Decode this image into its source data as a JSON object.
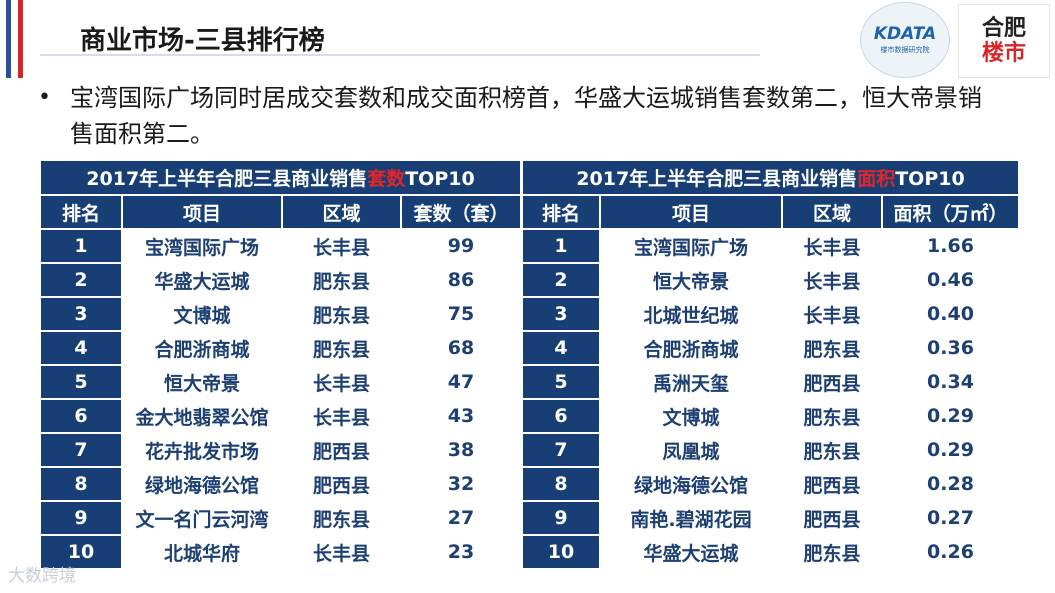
{
  "header": {
    "title": "商业市场-三县排行榜"
  },
  "logos": {
    "kdata_main": "KDATA",
    "kdata_sub": "楼市数据研究院",
    "loushi_top": "合肥",
    "loushi_bottom": "楼市"
  },
  "bullet": {
    "symbol": "•",
    "text": "宝湾国际广场同时居成交套数和成交面积榜首，华盛大运城销售套数第二，恒大帝景销售面积第二。"
  },
  "table_units": {
    "caption_prefix": "2017年上半年合肥三县商业销售",
    "caption_highlight": "套数",
    "caption_suffix": "TOP10",
    "headers": [
      "排名",
      "项目",
      "区域",
      "套数（套）"
    ],
    "rows": [
      {
        "rank": "1",
        "project": "宝湾国际广场",
        "region": "长丰县",
        "value": "99"
      },
      {
        "rank": "2",
        "project": "华盛大运城",
        "region": "肥东县",
        "value": "86"
      },
      {
        "rank": "3",
        "project": "文博城",
        "region": "肥东县",
        "value": "75"
      },
      {
        "rank": "4",
        "project": "合肥浙商城",
        "region": "肥东县",
        "value": "68"
      },
      {
        "rank": "5",
        "project": "恒大帝景",
        "region": "长丰县",
        "value": "47"
      },
      {
        "rank": "6",
        "project": "金大地翡翠公馆",
        "region": "长丰县",
        "value": "43"
      },
      {
        "rank": "7",
        "project": "花卉批发市场",
        "region": "肥西县",
        "value": "38"
      },
      {
        "rank": "8",
        "project": "绿地海德公馆",
        "region": "肥西县",
        "value": "32"
      },
      {
        "rank": "9",
        "project": "文一名门云河湾",
        "region": "肥东县",
        "value": "27"
      },
      {
        "rank": "10",
        "project": "北城华府",
        "region": "长丰县",
        "value": "23"
      }
    ]
  },
  "table_area": {
    "caption_prefix": "2017年上半年合肥三县商业销售",
    "caption_highlight": "面积",
    "caption_suffix": "TOP10",
    "headers": [
      "排名",
      "项目",
      "区域",
      "面积（万㎡）"
    ],
    "rows": [
      {
        "rank": "1",
        "project": "宝湾国际广场",
        "region": "长丰县",
        "value": "1.66"
      },
      {
        "rank": "2",
        "project": "恒大帝景",
        "region": "长丰县",
        "value": "0.46"
      },
      {
        "rank": "3",
        "project": "北城世纪城",
        "region": "长丰县",
        "value": "0.40"
      },
      {
        "rank": "4",
        "project": "合肥浙商城",
        "region": "肥东县",
        "value": "0.36"
      },
      {
        "rank": "5",
        "project": "禹洲天玺",
        "region": "肥西县",
        "value": "0.34"
      },
      {
        "rank": "6",
        "project": "文博城",
        "region": "肥东县",
        "value": "0.29"
      },
      {
        "rank": "7",
        "project": "凤凰城",
        "region": "肥东县",
        "value": "0.29"
      },
      {
        "rank": "8",
        "project": "绿地海德公馆",
        "region": "肥西县",
        "value": "0.28"
      },
      {
        "rank": "9",
        "project": "南艳.碧湖花园",
        "region": "肥西县",
        "value": "0.27"
      },
      {
        "rank": "10",
        "project": "华盛大运城",
        "region": "肥东县",
        "value": "0.26"
      }
    ]
  },
  "watermark": {
    "text": "大数跨境"
  },
  "colors": {
    "navy": "#173f75",
    "highlight_red": "#e0262a",
    "cell_text": "#1d3f72"
  }
}
